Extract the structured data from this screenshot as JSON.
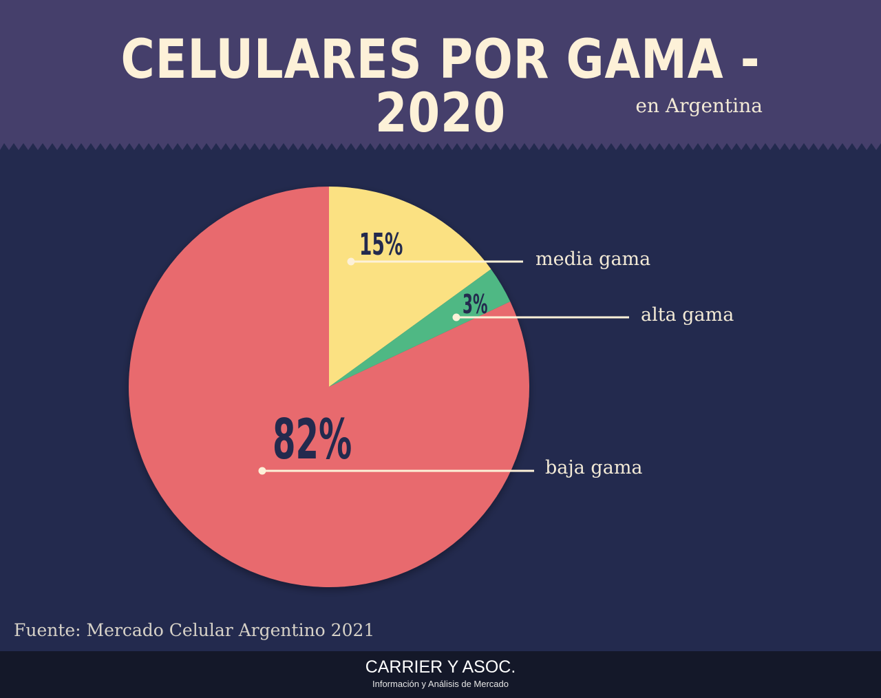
{
  "header": {
    "title": "CELULARES POR GAMA - 2020",
    "subtitle": "en Argentina",
    "bg_color": "#453f6b"
  },
  "chart_data": {
    "type": "pie",
    "title": "CELULARES POR GAMA - 2020",
    "subtitle": "en Argentina",
    "slices": [
      {
        "name": "media gama",
        "value": 15,
        "label": "15%",
        "color": "#fbe182"
      },
      {
        "name": "alta gama",
        "value": 3,
        "label": "3%",
        "color": "#4fb884"
      },
      {
        "name": "baja gama",
        "value": 82,
        "label": "82%",
        "color": "#e86b6e"
      }
    ],
    "start": "top",
    "direction": "clockwise",
    "legend": "callout lines to the right"
  },
  "source": "Fuente: Mercado Celular Argentino 2021",
  "footer": {
    "brand": "CARRIER Y ASOC.",
    "tagline": "Información y Análisis de Mercado"
  },
  "colors": {
    "background": "#232a4e",
    "header": "#453f6b",
    "footer": "#141829",
    "text_light": "#fdf1d8",
    "label_dark": "#232a4e"
  }
}
